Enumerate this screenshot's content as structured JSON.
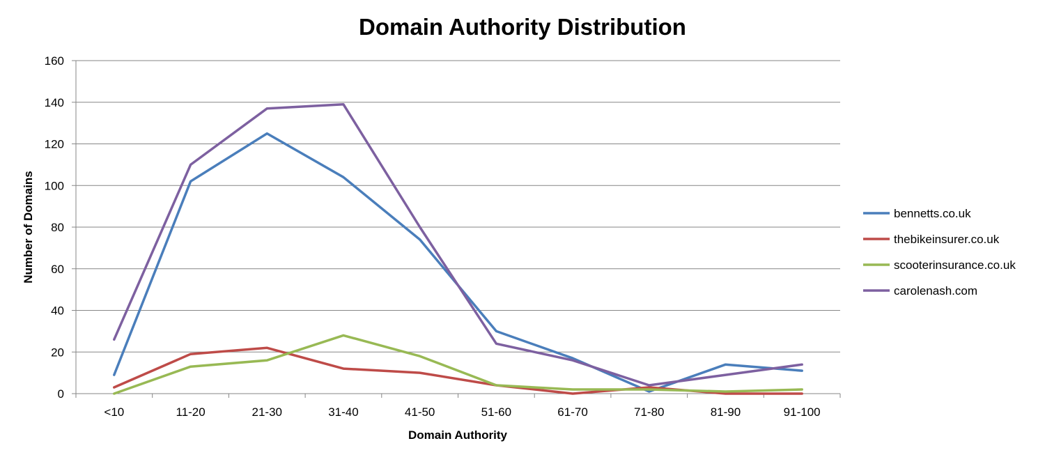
{
  "chart_data": {
    "type": "line",
    "title": "Domain Authority Distribution",
    "xlabel": "Domain Authority",
    "ylabel": "Number of Domains",
    "categories": [
      "<10",
      "11-20",
      "21-30",
      "31-40",
      "41-50",
      "51-60",
      "61-70",
      "71-80",
      "81-90",
      "91-100"
    ],
    "ylim": [
      0,
      160
    ],
    "yticks": [
      0,
      20,
      40,
      60,
      80,
      100,
      120,
      140,
      160
    ],
    "grid": true,
    "legend_position": "right",
    "series": [
      {
        "name": "bennetts.co.uk",
        "color": "#4a7ebb",
        "values": [
          9,
          102,
          125,
          104,
          74,
          30,
          17,
          1,
          14,
          11
        ]
      },
      {
        "name": "thebikeinsurer.co.uk",
        "color": "#be4b48",
        "values": [
          3,
          19,
          22,
          12,
          10,
          4,
          0,
          3,
          0,
          0
        ]
      },
      {
        "name": "scooterinsurance.co.uk",
        "color": "#98b954",
        "values": [
          0,
          13,
          16,
          28,
          18,
          4,
          2,
          2,
          1,
          2
        ]
      },
      {
        "name": "carolenash.com",
        "color": "#7d60a0",
        "values": [
          26,
          110,
          137,
          139,
          80,
          24,
          16,
          4,
          9,
          14
        ]
      }
    ]
  }
}
